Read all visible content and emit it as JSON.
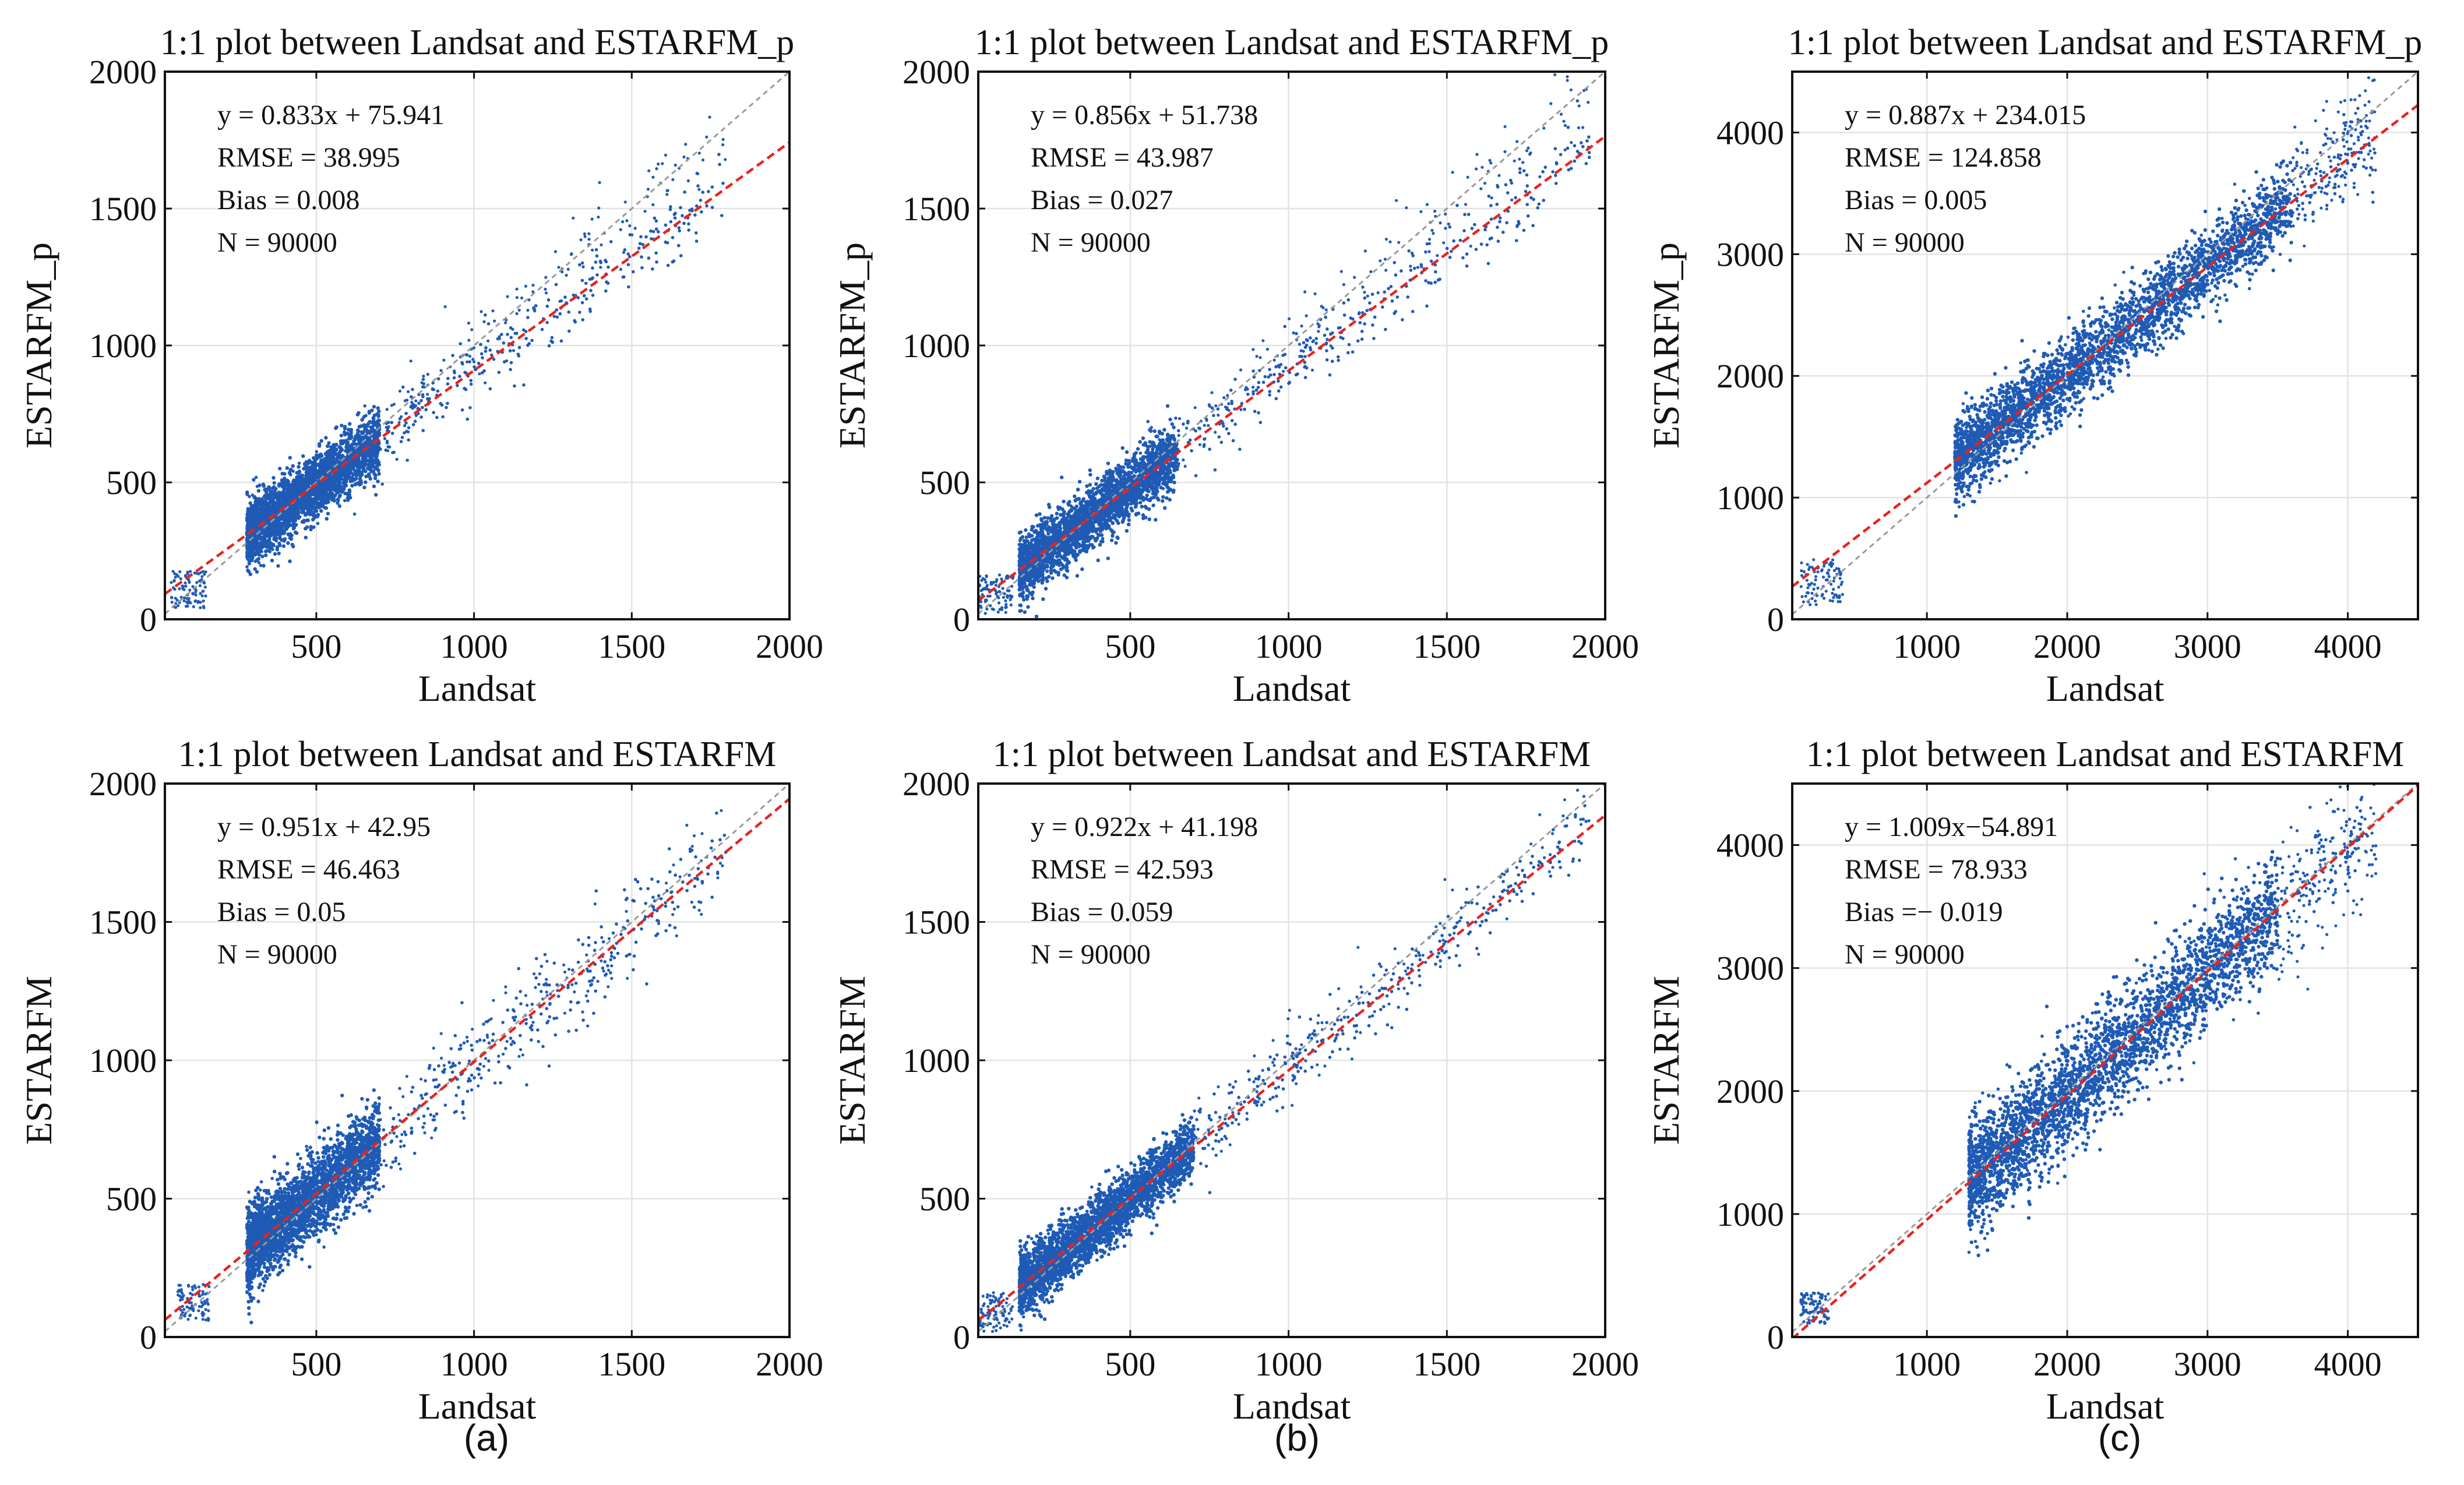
{
  "chart_data": [
    {
      "type": "scatter",
      "row": "top",
      "column": "a",
      "title": "1:1 plot between Landsat and ESTARFM_p",
      "xlabel": "Landsat",
      "ylabel": "ESTARFM_p",
      "xlim": [
        20,
        2000
      ],
      "ylim": [
        0,
        2000
      ],
      "xticks": [
        500,
        1000,
        1500,
        2000
      ],
      "yticks": [
        0,
        500,
        1000,
        1500,
        2000
      ],
      "fit": {
        "slope": 0.833,
        "intercept": 75.941
      },
      "annotations": [
        "y = 0.833x + 75.941",
        "RMSE = 38.995",
        "Bias = 0.008",
        "N = 90000"
      ],
      "cloud": {
        "xmin": 280,
        "xmax": 700,
        "sigma": 55,
        "tail_to": 1800,
        "low_cluster": [
          40,
          150
        ]
      }
    },
    {
      "type": "scatter",
      "row": "top",
      "column": "b",
      "title": "1:1 plot between Landsat and ESTARFM_p",
      "xlabel": "Landsat",
      "ylabel": "ESTARFM_p",
      "xlim": [
        20,
        2000
      ],
      "ylim": [
        0,
        2000
      ],
      "xticks": [
        500,
        1000,
        1500,
        2000
      ],
      "yticks": [
        0,
        500,
        1000,
        1500,
        2000
      ],
      "fit": {
        "slope": 0.856,
        "intercept": 51.738
      },
      "annotations": [
        "y = 0.856x + 51.738",
        "RMSE = 43.987",
        "Bias = 0.027",
        "N = 90000"
      ],
      "cloud": {
        "xmin": 150,
        "xmax": 650,
        "sigma": 55,
        "tail_to": 1950,
        "low_cluster": [
          20,
          130
        ]
      }
    },
    {
      "type": "scatter",
      "row": "top",
      "column": "c",
      "title": "1:1 plot between Landsat and ESTARFM_p",
      "xlabel": "Landsat",
      "ylabel": "ESTARFM_p",
      "xlim": [
        40,
        4500
      ],
      "ylim": [
        0,
        4500
      ],
      "xticks": [
        1000,
        2000,
        3000,
        4000
      ],
      "yticks": [
        0,
        1000,
        2000,
        3000,
        4000
      ],
      "fit": {
        "slope": 0.887,
        "intercept": 234.015
      },
      "annotations": [
        "y = 0.887x + 234.015",
        "RMSE = 124.858",
        "Bias = 0.005",
        "N = 90000"
      ],
      "cloud": {
        "xmin": 1200,
        "xmax": 3600,
        "sigma": 160,
        "tail_to": 4200,
        "low_cluster": [
          100,
          400
        ]
      }
    },
    {
      "type": "scatter",
      "row": "bottom",
      "column": "a",
      "title": "1:1 plot between Landsat and ESTARFM",
      "xlabel": "Landsat",
      "ylabel": "ESTARFM",
      "xlim": [
        20,
        2000
      ],
      "ylim": [
        0,
        2000
      ],
      "xticks": [
        500,
        1000,
        1500,
        2000
      ],
      "yticks": [
        0,
        500,
        1000,
        1500,
        2000
      ],
      "fit": {
        "slope": 0.951,
        "intercept": 42.95
      },
      "annotations": [
        "y = 0.951x + 42.95",
        "RMSE = 46.463",
        "Bias = 0.05",
        "N = 90000"
      ],
      "cloud": {
        "xmin": 280,
        "xmax": 700,
        "sigma": 75,
        "tail_to": 1800,
        "low_cluster": [
          60,
          160
        ]
      }
    },
    {
      "type": "scatter",
      "row": "bottom",
      "column": "b",
      "title": "1:1 plot between Landsat and ESTARFM",
      "xlabel": "Landsat",
      "ylabel": "ESTARFM",
      "xlim": [
        20,
        2000
      ],
      "ylim": [
        0,
        2000
      ],
      "xticks": [
        500,
        1000,
        1500,
        2000
      ],
      "yticks": [
        0,
        500,
        1000,
        1500,
        2000
      ],
      "fit": {
        "slope": 0.922,
        "intercept": 41.198
      },
      "annotations": [
        "y = 0.922x + 41.198",
        "RMSE = 42.593",
        "Bias = 0.059",
        "N = 90000"
      ],
      "cloud": {
        "xmin": 150,
        "xmax": 700,
        "sigma": 55,
        "tail_to": 1950,
        "low_cluster": [
          20,
          130
        ]
      }
    },
    {
      "type": "scatter",
      "row": "bottom",
      "column": "c",
      "title": "1:1 plot between Landsat and ESTARFM",
      "xlabel": "Landsat",
      "ylabel": "ESTARFM",
      "xlim": [
        40,
        4500
      ],
      "ylim": [
        0,
        4500
      ],
      "xticks": [
        1000,
        2000,
        3000,
        4000
      ],
      "yticks": [
        0,
        1000,
        2000,
        3000,
        4000
      ],
      "fit": {
        "slope": 1.009,
        "intercept": -54.891
      },
      "annotations": [
        "y = 1.009x−54.891",
        "RMSE = 78.933",
        "Bias =− 0.019",
        "N = 90000"
      ],
      "cloud": {
        "xmin": 1300,
        "xmax": 3500,
        "sigma": 230,
        "tail_to": 4200,
        "low_cluster": [
          100,
          300
        ]
      }
    }
  ],
  "panel_labels": [
    "(a)",
    "(b)",
    "(c)"
  ],
  "colors": {
    "points": "#1f5bb5",
    "fit_line": "#e8231e",
    "identity_line": "#9a9a9a",
    "grid": "#e3e3e3"
  }
}
